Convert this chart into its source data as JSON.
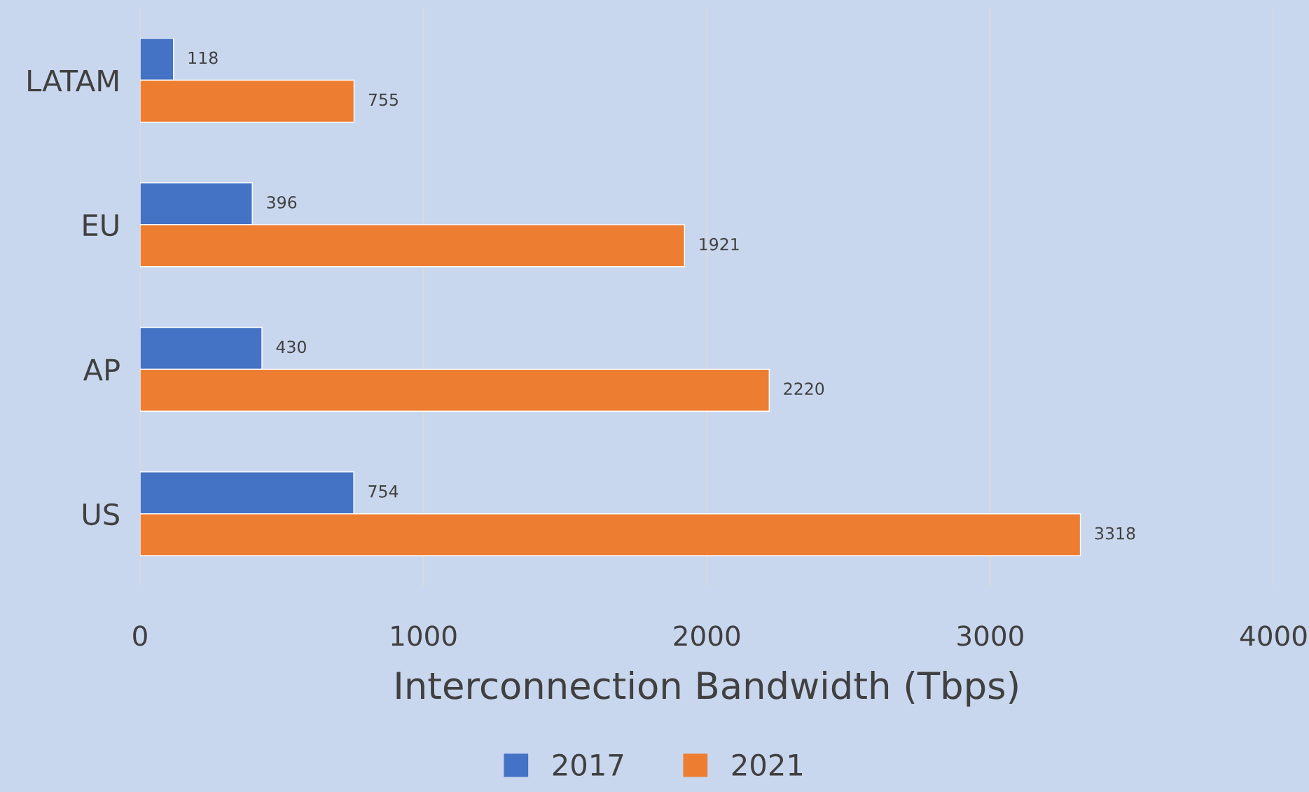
{
  "chart_data": {
    "type": "bar",
    "orientation": "horizontal",
    "xlabel": "Interconnection Bandwidth (Tbps)",
    "categories": [
      "LATAM",
      "EU",
      "AP",
      "US"
    ],
    "series": [
      {
        "name": "2017",
        "color": "#4472c4",
        "values": [
          118,
          396,
          430,
          754
        ]
      },
      {
        "name": "2021",
        "color": "#ed7d31",
        "values": [
          755,
          1921,
          2220,
          3318
        ]
      }
    ],
    "xlim": [
      0,
      4000
    ],
    "xticks": [
      0,
      1000,
      2000,
      3000,
      4000
    ],
    "grid": "x",
    "legend": "bottom",
    "data_labels": true
  }
}
